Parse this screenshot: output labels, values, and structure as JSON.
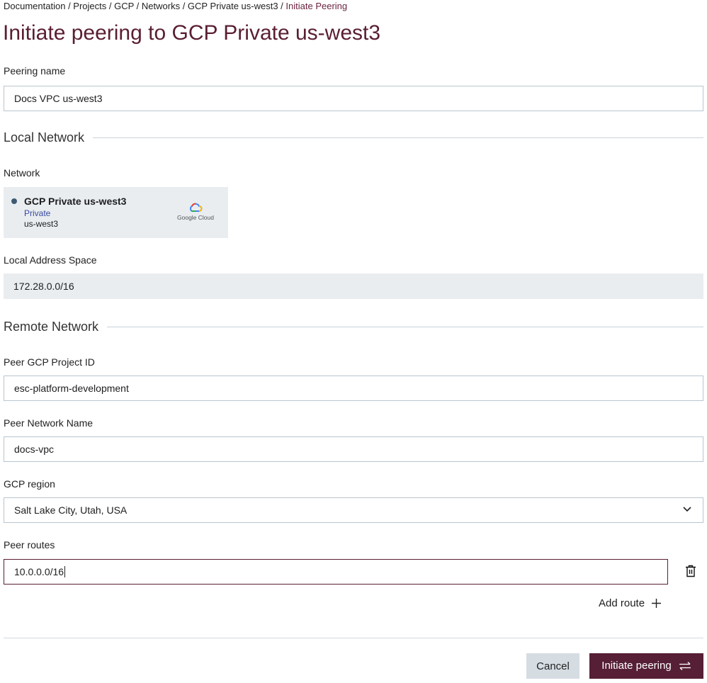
{
  "breadcrumb": {
    "items": [
      "Documentation",
      "Projects",
      "GCP",
      "Networks",
      "GCP Private us-west3"
    ],
    "current": "Initiate Peering"
  },
  "page_title": "Initiate peering to GCP Private us-west3",
  "peering_name": {
    "label": "Peering name",
    "value": "Docs VPC us-west3"
  },
  "local_section": "Local Network",
  "network": {
    "label": "Network",
    "name": "GCP Private us-west3",
    "type": "Private",
    "region": "us-west3",
    "provider": "Google Cloud"
  },
  "local_address": {
    "label": "Local Address Space",
    "value": "172.28.0.0/16"
  },
  "remote_section": "Remote Network",
  "project_id": {
    "label": "Peer GCP Project ID",
    "value": "esc-platform-development"
  },
  "network_name": {
    "label": "Peer Network Name",
    "value": "docs-vpc"
  },
  "region": {
    "label": "GCP region",
    "value": "Salt Lake City, Utah, USA"
  },
  "routes": {
    "label": "Peer routes",
    "items": [
      "10.0.0.0/16"
    ],
    "add_label": "Add route"
  },
  "actions": {
    "cancel": "Cancel",
    "submit": "Initiate peering"
  },
  "colors": {
    "brand": "#561f35",
    "field_bg": "#e9edf0",
    "border": "#b9c6d0"
  }
}
